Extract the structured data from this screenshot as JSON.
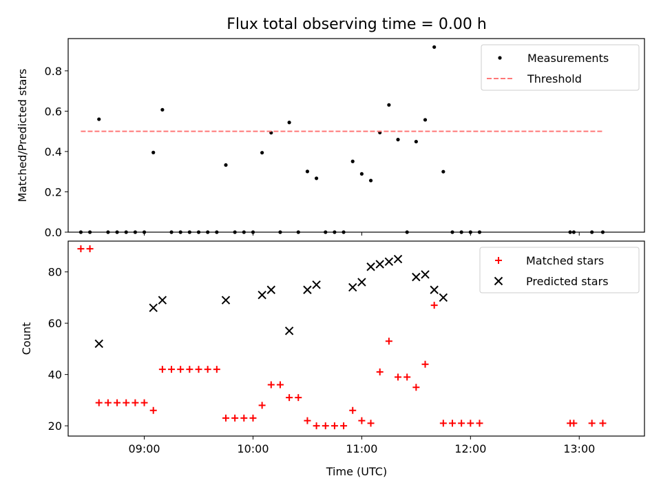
{
  "title": "Flux total observing time = 0.00 h",
  "chart_data": [
    {
      "type": "scatter",
      "ylabel": "Matched/Predicted stars",
      "xlabel": "",
      "xlim": [
        "08:18",
        "13:36"
      ],
      "ylim": [
        0,
        0.96
      ],
      "yticks": [
        0.0,
        0.2,
        0.4,
        0.6,
        0.8
      ],
      "ytick_labels": [
        "0.0",
        "0.2",
        "0.4",
        "0.6",
        "0.8"
      ],
      "legend_position": "upper-right",
      "series": [
        {
          "name": "Measurements",
          "marker": "dot",
          "color": "#000000",
          "points": [
            [
              "08:25",
              0
            ],
            [
              "08:30",
              0
            ],
            [
              "08:35",
              0.56
            ],
            [
              "08:40",
              0
            ],
            [
              "08:45",
              0
            ],
            [
              "08:50",
              0
            ],
            [
              "08:55",
              0
            ],
            [
              "09:00",
              0
            ],
            [
              "09:05",
              0.395
            ],
            [
              "09:10",
              0.607
            ],
            [
              "09:15",
              0
            ],
            [
              "09:20",
              0
            ],
            [
              "09:25",
              0
            ],
            [
              "09:30",
              0
            ],
            [
              "09:35",
              0
            ],
            [
              "09:40",
              0
            ],
            [
              "09:45",
              0.333
            ],
            [
              "09:50",
              0
            ],
            [
              "09:55",
              0
            ],
            [
              "10:00",
              0
            ],
            [
              "10:05",
              0.394
            ],
            [
              "10:10",
              0.493
            ],
            [
              "10:15",
              0
            ],
            [
              "10:20",
              0.544
            ],
            [
              "10:25",
              0
            ],
            [
              "10:30",
              0.301
            ],
            [
              "10:35",
              0.267
            ],
            [
              "10:40",
              0
            ],
            [
              "10:45",
              0
            ],
            [
              "10:50",
              0
            ],
            [
              "10:55",
              0.351
            ],
            [
              "11:00",
              0.289
            ],
            [
              "11:05",
              0.256
            ],
            [
              "11:10",
              0.494
            ],
            [
              "11:15",
              0.631
            ],
            [
              "11:20",
              0.459
            ],
            [
              "11:25",
              0
            ],
            [
              "11:30",
              0.449
            ],
            [
              "11:35",
              0.557
            ],
            [
              "11:40",
              0.918
            ],
            [
              "11:45",
              0.3
            ],
            [
              "11:50",
              0
            ],
            [
              "11:55",
              0
            ],
            [
              "12:00",
              0
            ],
            [
              "12:05",
              0
            ],
            [
              "12:55",
              0
            ],
            [
              "12:57",
              0
            ],
            [
              "13:07",
              0
            ],
            [
              "13:13",
              0
            ]
          ]
        },
        {
          "name": "Threshold",
          "style": "dashed",
          "color": "#ff7777",
          "x": [
            "08:25",
            "13:13"
          ],
          "y": [
            0.5,
            0.5
          ]
        }
      ]
    },
    {
      "type": "scatter",
      "ylabel": "Count",
      "xlabel": "Time (UTC)",
      "xlim": [
        "08:18",
        "13:36"
      ],
      "ylim": [
        16,
        92
      ],
      "yticks": [
        20,
        40,
        60,
        80
      ],
      "ytick_labels": [
        "20",
        "40",
        "60",
        "80"
      ],
      "xticks": [
        "09:00",
        "10:00",
        "11:00",
        "12:00",
        "13:00"
      ],
      "xtick_labels": [
        "09:00",
        "10:00",
        "11:00",
        "12:00",
        "13:00"
      ],
      "legend_position": "upper-right",
      "series": [
        {
          "name": "Matched stars",
          "marker": "plus",
          "color": "#ff0000",
          "points": [
            [
              "08:25",
              89
            ],
            [
              "08:30",
              89
            ],
            [
              "08:35",
              29
            ],
            [
              "08:40",
              29
            ],
            [
              "08:45",
              29
            ],
            [
              "08:50",
              29
            ],
            [
              "08:55",
              29
            ],
            [
              "09:00",
              29
            ],
            [
              "09:05",
              26
            ],
            [
              "09:10",
              42
            ],
            [
              "09:15",
              42
            ],
            [
              "09:20",
              42
            ],
            [
              "09:25",
              42
            ],
            [
              "09:30",
              42
            ],
            [
              "09:35",
              42
            ],
            [
              "09:40",
              42
            ],
            [
              "09:45",
              23
            ],
            [
              "09:50",
              23
            ],
            [
              "09:55",
              23
            ],
            [
              "10:00",
              23
            ],
            [
              "10:05",
              28
            ],
            [
              "10:10",
              36
            ],
            [
              "10:15",
              36
            ],
            [
              "10:20",
              31
            ],
            [
              "10:25",
              31
            ],
            [
              "10:30",
              22
            ],
            [
              "10:35",
              20
            ],
            [
              "10:40",
              20
            ],
            [
              "10:45",
              20
            ],
            [
              "10:50",
              20
            ],
            [
              "10:55",
              26
            ],
            [
              "11:00",
              22
            ],
            [
              "11:05",
              21
            ],
            [
              "11:10",
              41
            ],
            [
              "11:15",
              53
            ],
            [
              "11:20",
              39
            ],
            [
              "11:25",
              39
            ],
            [
              "11:30",
              35
            ],
            [
              "11:35",
              44
            ],
            [
              "11:40",
              67
            ],
            [
              "11:45",
              21
            ],
            [
              "11:50",
              21
            ],
            [
              "11:55",
              21
            ],
            [
              "12:00",
              21
            ],
            [
              "12:05",
              21
            ],
            [
              "12:55",
              21
            ],
            [
              "12:57",
              21
            ],
            [
              "13:07",
              21
            ],
            [
              "13:13",
              21
            ]
          ]
        },
        {
          "name": "Predicted stars",
          "marker": "x",
          "color": "#000000",
          "points": [
            [
              "08:35",
              52
            ],
            [
              "09:05",
              66
            ],
            [
              "09:10",
              69
            ],
            [
              "09:45",
              69
            ],
            [
              "10:05",
              71
            ],
            [
              "10:10",
              73
            ],
            [
              "10:20",
              57
            ],
            [
              "10:30",
              73
            ],
            [
              "10:35",
              75
            ],
            [
              "10:55",
              74
            ],
            [
              "11:00",
              76
            ],
            [
              "11:05",
              82
            ],
            [
              "11:10",
              83
            ],
            [
              "11:15",
              84
            ],
            [
              "11:20",
              85
            ],
            [
              "11:30",
              78
            ],
            [
              "11:35",
              79
            ],
            [
              "11:40",
              73
            ],
            [
              "11:45",
              70
            ]
          ]
        }
      ]
    }
  ]
}
